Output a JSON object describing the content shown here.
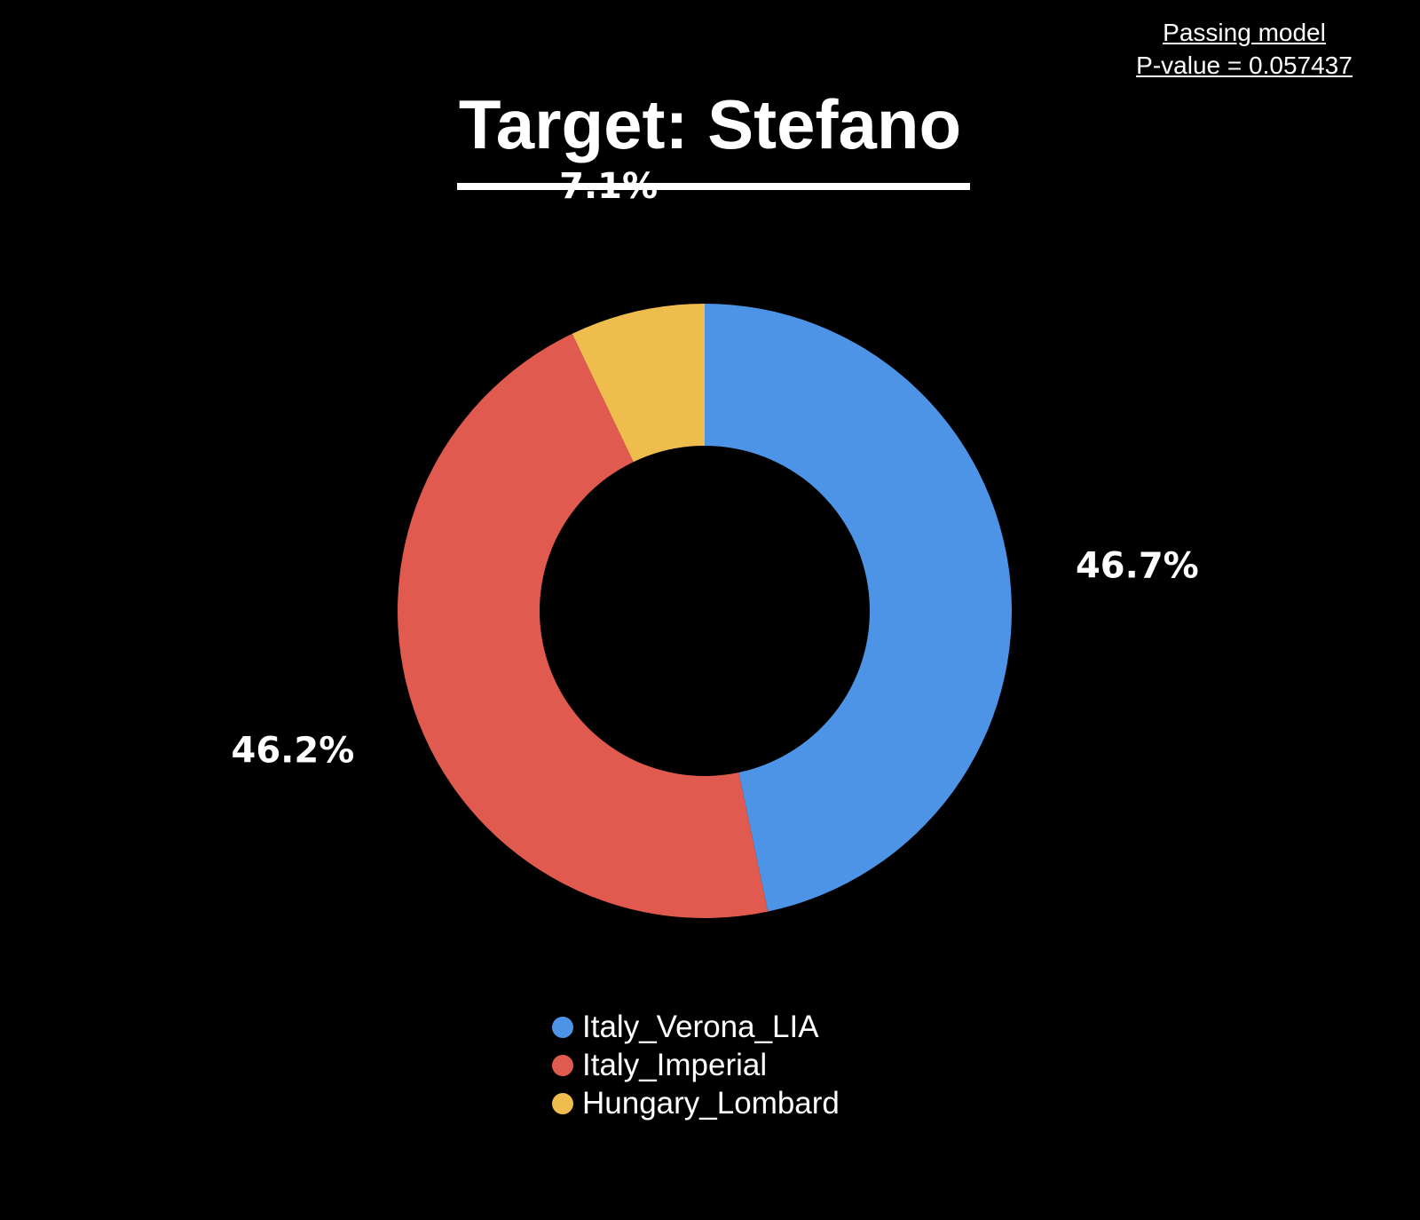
{
  "note": {
    "line1": "Passing model",
    "line2": "P-value = 0.057437"
  },
  "chart_data": {
    "type": "pie",
    "variant": "donut",
    "title": "Target: Stefano",
    "categories": [
      "Italy_Verona_LIA",
      "Italy_Imperial",
      "Hungary_Lombard"
    ],
    "values": [
      46.7,
      46.2,
      7.1
    ],
    "labels": [
      "46.7%",
      "46.2%",
      "7.1%"
    ],
    "colors": [
      "#4d94e6",
      "#e05a4f",
      "#eebd4e"
    ],
    "legend_position": "bottom",
    "start_angle": "12 o'clock",
    "direction": "clockwise"
  }
}
